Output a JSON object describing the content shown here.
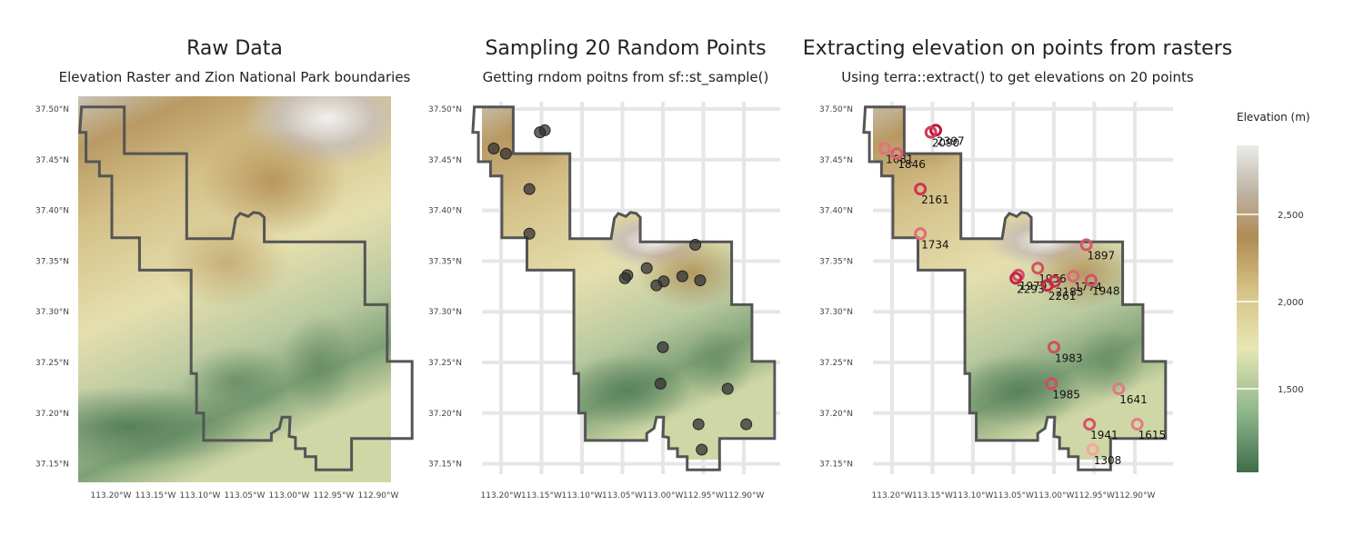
{
  "panels": [
    {
      "title": "Raw Data",
      "subtitle": "Elevation Raster and Zion National Park boundaries"
    },
    {
      "title": "Sampling 20 Random Points",
      "subtitle": "Getting rndom poitns from sf::st_sample()"
    },
    {
      "title": "Extracting elevation on points from rasters",
      "subtitle": "Using terra::extract() to get elevations on 20 points"
    }
  ],
  "axes": {
    "lon_ticks": [
      "113.20°W",
      "113.15°W",
      "113.10°W",
      "113.05°W",
      "113.00°W",
      "112.95°W",
      "112.90°W"
    ],
    "lat_ticks": [
      "37.50°N",
      "37.45°N",
      "37.40°N",
      "37.35°N",
      "37.30°N",
      "37.25°N",
      "37.20°N",
      "37.15°N"
    ]
  },
  "legend": {
    "title": "Elevation (m)",
    "ticks": [
      "2,500",
      "2,000",
      "1,500"
    ],
    "colors": [
      "#3f6d4a",
      "#8db58a",
      "#e8e6b4",
      "#d6c487",
      "#b08b55",
      "#bfb4a6",
      "#ecebe9"
    ]
  },
  "colors": {
    "boundary": "#555555",
    "point_fill": "#333333",
    "point_ring_low": "#f3a7a0",
    "point_ring_high": "#c0143c"
  },
  "points": [
    {
      "lon": -113.146,
      "lat": 37.479,
      "label": "2397",
      "elev": 2397
    },
    {
      "lon": -113.152,
      "lat": 37.477,
      "label": "2090",
      "elev": 2090
    },
    {
      "lon": -113.209,
      "lat": 37.461,
      "label": "1681",
      "elev": 1681
    },
    {
      "lon": -113.194,
      "lat": 37.456,
      "label": "1846",
      "elev": 1846
    },
    {
      "lon": -113.165,
      "lat": 37.421,
      "label": "2161",
      "elev": 2161
    },
    {
      "lon": -113.165,
      "lat": 37.377,
      "label": "1734",
      "elev": 1734
    },
    {
      "lon": -112.96,
      "lat": 37.366,
      "label": "1897",
      "elev": 1897
    },
    {
      "lon": -113.02,
      "lat": 37.343,
      "label": "1956",
      "elev": 1956
    },
    {
      "lon": -113.044,
      "lat": 37.336,
      "label": "1979",
      "elev": 1979
    },
    {
      "lon": -113.047,
      "lat": 37.333,
      "label": "2293",
      "elev": 2293
    },
    {
      "lon": -112.999,
      "lat": 37.33,
      "label": "2183",
      "elev": 2183
    },
    {
      "lon": -112.976,
      "lat": 37.335,
      "label": "1774",
      "elev": 1774
    },
    {
      "lon": -112.954,
      "lat": 37.331,
      "label": "1948",
      "elev": 1948
    },
    {
      "lon": -113.008,
      "lat": 37.326,
      "label": "2261",
      "elev": 2261
    },
    {
      "lon": -113.0,
      "lat": 37.265,
      "label": "1983",
      "elev": 1983
    },
    {
      "lon": -113.003,
      "lat": 37.229,
      "label": "1985",
      "elev": 1985
    },
    {
      "lon": -112.92,
      "lat": 37.224,
      "label": "1641",
      "elev": 1641
    },
    {
      "lon": -112.956,
      "lat": 37.189,
      "label": "1941",
      "elev": 1941
    },
    {
      "lon": -112.897,
      "lat": 37.189,
      "label": "1615",
      "elev": 1615
    },
    {
      "lon": -112.952,
      "lat": 37.164,
      "label": "1308",
      "elev": 1308
    }
  ],
  "boundary": [
    [
      -113.233,
      37.502
    ],
    [
      -113.185,
      37.502
    ],
    [
      -113.185,
      37.456
    ],
    [
      -113.115,
      37.456
    ],
    [
      -113.115,
      37.372
    ],
    [
      -113.064,
      37.372
    ],
    [
      -113.06,
      37.392
    ],
    [
      -113.055,
      37.397
    ],
    [
      -113.046,
      37.394
    ],
    [
      -113.04,
      37.398
    ],
    [
      -113.033,
      37.397
    ],
    [
      -113.028,
      37.393
    ],
    [
      -113.028,
      37.369
    ],
    [
      -112.915,
      37.369
    ],
    [
      -112.915,
      37.307
    ],
    [
      -112.89,
      37.307
    ],
    [
      -112.89,
      37.251
    ],
    [
      -112.862,
      37.251
    ],
    [
      -112.862,
      37.175
    ],
    [
      -112.93,
      37.175
    ],
    [
      -112.93,
      37.144
    ],
    [
      -112.97,
      37.144
    ],
    [
      -112.97,
      37.157
    ],
    [
      -112.982,
      37.157
    ],
    [
      -112.982,
      37.165
    ],
    [
      -112.993,
      37.165
    ],
    [
      -112.993,
      37.176
    ],
    [
      -113.0,
      37.177
    ],
    [
      -112.999,
      37.196
    ],
    [
      -113.008,
      37.196
    ],
    [
      -113.011,
      37.185
    ],
    [
      -113.02,
      37.18
    ],
    [
      -113.02,
      37.173
    ],
    [
      -113.096,
      37.173
    ],
    [
      -113.096,
      37.2
    ],
    [
      -113.104,
      37.2
    ],
    [
      -113.104,
      37.239
    ],
    [
      -113.11,
      37.239
    ],
    [
      -113.11,
      37.341
    ],
    [
      -113.168,
      37.341
    ],
    [
      -113.168,
      37.373
    ],
    [
      -113.199,
      37.373
    ],
    [
      -113.199,
      37.434
    ],
    [
      -113.213,
      37.434
    ],
    [
      -113.213,
      37.448
    ],
    [
      -113.228,
      37.448
    ],
    [
      -113.228,
      37.477
    ],
    [
      -113.235,
      37.477
    ]
  ]
}
